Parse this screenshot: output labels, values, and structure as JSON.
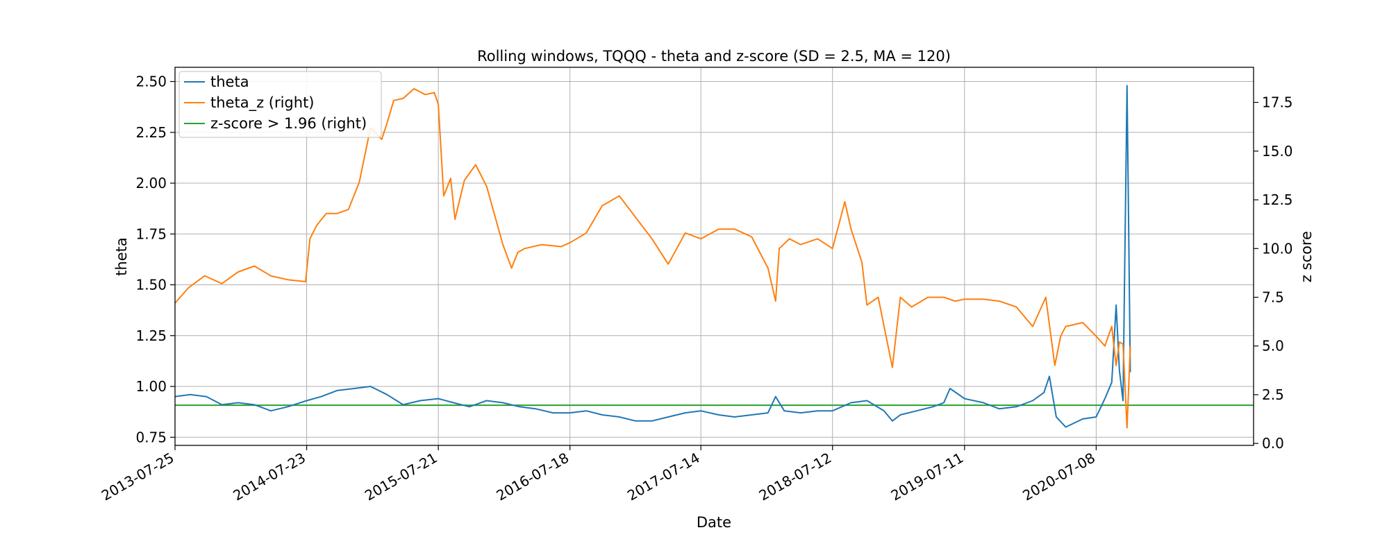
{
  "chart_data": {
    "type": "line",
    "title": "Rolling windows, TQQQ - theta and z-score (SD = 2.5, MA = 120)",
    "xlabel": "Date",
    "ylabel": "theta",
    "y2label": "z score",
    "xlim": [
      "2013-07-25",
      "2021-09-15"
    ],
    "ylim": [
      0.71,
      2.57
    ],
    "y2lim": [
      -0.1,
      19.3
    ],
    "xticks": [
      "2013-07-25",
      "2014-07-23",
      "2015-07-21",
      "2016-07-18",
      "2017-07-14",
      "2018-07-12",
      "2019-07-11",
      "2020-07-08"
    ],
    "yticks": [
      "0.75",
      "1.00",
      "1.25",
      "1.50",
      "1.75",
      "2.00",
      "2.25",
      "2.50"
    ],
    "y2ticks": [
      "0.0",
      "2.5",
      "5.0",
      "7.5",
      "10.0",
      "12.5",
      "15.0",
      "17.5"
    ],
    "grid": true,
    "legend_position": "top-left",
    "colors": {
      "theta": "#1f77b4",
      "theta_z": "#ff7f0e",
      "threshold": "#2ca02c"
    },
    "series": [
      {
        "name": "theta",
        "axis": "left",
        "x": [
          "2013-07-25",
          "2013-09-05",
          "2013-10-20",
          "2013-12-01",
          "2014-01-15",
          "2014-03-01",
          "2014-04-15",
          "2014-06-01",
          "2014-07-23",
          "2014-09-01",
          "2014-10-15",
          "2014-12-01",
          "2015-01-15",
          "2015-03-01",
          "2015-04-15",
          "2015-06-01",
          "2015-07-21",
          "2015-09-01",
          "2015-10-15",
          "2015-12-01",
          "2016-01-15",
          "2016-03-01",
          "2016-04-15",
          "2016-06-01",
          "2016-07-18",
          "2016-09-01",
          "2016-10-15",
          "2016-12-01",
          "2017-01-15",
          "2017-03-01",
          "2017-04-15",
          "2017-06-01",
          "2017-07-14",
          "2017-09-01",
          "2017-10-15",
          "2017-12-01",
          "2018-01-15",
          "2018-02-05",
          "2018-03-01",
          "2018-04-15",
          "2018-06-01",
          "2018-07-12",
          "2018-09-01",
          "2018-10-15",
          "2018-12-01",
          "2018-12-24",
          "2019-01-15",
          "2019-03-01",
          "2019-04-15",
          "2019-05-15",
          "2019-06-01",
          "2019-07-11",
          "2019-09-01",
          "2019-10-15",
          "2019-12-01",
          "2020-01-15",
          "2020-02-15",
          "2020-03-01",
          "2020-03-20",
          "2020-04-15",
          "2020-06-01",
          "2020-07-08",
          "2020-08-01",
          "2020-08-20",
          "2020-09-01",
          "2020-09-10",
          "2020-09-20",
          "2020-10-01",
          "2020-10-10"
        ],
        "y": [
          0.95,
          0.96,
          0.95,
          0.91,
          0.92,
          0.91,
          0.88,
          0.9,
          0.93,
          0.95,
          0.98,
          0.99,
          1.0,
          0.96,
          0.91,
          0.93,
          0.94,
          0.92,
          0.9,
          0.93,
          0.92,
          0.9,
          0.89,
          0.87,
          0.87,
          0.88,
          0.86,
          0.85,
          0.83,
          0.83,
          0.85,
          0.87,
          0.88,
          0.86,
          0.85,
          0.86,
          0.87,
          0.95,
          0.88,
          0.87,
          0.88,
          0.88,
          0.92,
          0.93,
          0.88,
          0.83,
          0.86,
          0.88,
          0.9,
          0.92,
          0.99,
          0.94,
          0.92,
          0.89,
          0.9,
          0.93,
          0.97,
          1.05,
          0.85,
          0.8,
          0.84,
          0.85,
          0.94,
          1.02,
          1.4,
          1.08,
          0.93,
          2.48,
          1.07
        ]
      },
      {
        "name": "theta_z (right)",
        "axis": "right",
        "x": [
          "2013-07-25",
          "2013-09-01",
          "2013-10-15",
          "2013-12-01",
          "2014-01-15",
          "2014-03-01",
          "2014-04-15",
          "2014-06-01",
          "2014-07-20",
          "2014-08-01",
          "2014-08-20",
          "2014-09-15",
          "2014-10-15",
          "2014-11-15",
          "2014-12-15",
          "2015-01-15",
          "2015-02-15",
          "2015-03-01",
          "2015-03-20",
          "2015-04-15",
          "2015-05-15",
          "2015-06-15",
          "2015-07-10",
          "2015-07-21",
          "2015-08-05",
          "2015-08-24",
          "2015-09-05",
          "2015-10-01",
          "2015-11-01",
          "2015-12-01",
          "2016-01-15",
          "2016-02-08",
          "2016-02-25",
          "2016-03-15",
          "2016-05-01",
          "2016-06-24",
          "2016-07-18",
          "2016-09-01",
          "2016-10-15",
          "2016-12-01",
          "2017-01-15",
          "2017-03-01",
          "2017-04-15",
          "2017-06-01",
          "2017-07-14",
          "2017-09-01",
          "2017-10-15",
          "2017-12-01",
          "2018-01-15",
          "2018-02-05",
          "2018-02-15",
          "2018-03-15",
          "2018-04-15",
          "2018-06-01",
          "2018-07-12",
          "2018-08-15",
          "2018-09-01",
          "2018-10-01",
          "2018-10-15",
          "2018-11-15",
          "2018-12-24",
          "2019-01-15",
          "2019-02-15",
          "2019-04-01",
          "2019-05-15",
          "2019-06-15",
          "2019-07-11",
          "2019-09-01",
          "2019-10-15",
          "2019-12-01",
          "2020-01-15",
          "2020-02-20",
          "2020-03-16",
          "2020-04-01",
          "2020-04-15",
          "2020-06-01",
          "2020-07-08",
          "2020-08-01",
          "2020-08-20",
          "2020-09-01",
          "2020-09-10",
          "2020-09-20",
          "2020-10-01",
          "2020-10-10"
        ],
        "y": [
          7.2,
          8.0,
          8.6,
          8.2,
          8.8,
          9.1,
          8.6,
          8.4,
          8.3,
          10.5,
          11.2,
          11.8,
          11.8,
          12.0,
          13.4,
          16.2,
          15.6,
          16.4,
          17.6,
          17.7,
          18.2,
          17.9,
          18.0,
          17.4,
          12.7,
          13.6,
          11.5,
          13.5,
          14.3,
          13.2,
          10.2,
          9.0,
          9.8,
          10.0,
          10.2,
          10.1,
          10.3,
          10.8,
          12.2,
          12.7,
          11.6,
          10.5,
          9.2,
          10.8,
          10.5,
          11.0,
          11.0,
          10.6,
          9.0,
          7.3,
          10.0,
          10.5,
          10.2,
          10.5,
          10.0,
          12.4,
          11.0,
          9.3,
          7.1,
          7.5,
          3.9,
          7.5,
          7.0,
          7.5,
          7.5,
          7.3,
          7.4,
          7.4,
          7.3,
          7.0,
          6.0,
          7.5,
          4.0,
          5.5,
          6.0,
          6.2,
          5.5,
          5.0,
          6.0,
          4.0,
          5.2,
          5.1,
          0.8,
          5.0
        ]
      },
      {
        "name": "z-score > 1.96 (right)",
        "axis": "right",
        "x": [
          "2013-07-25",
          "2021-09-15"
        ],
        "y": [
          1.96,
          1.96
        ]
      }
    ]
  }
}
